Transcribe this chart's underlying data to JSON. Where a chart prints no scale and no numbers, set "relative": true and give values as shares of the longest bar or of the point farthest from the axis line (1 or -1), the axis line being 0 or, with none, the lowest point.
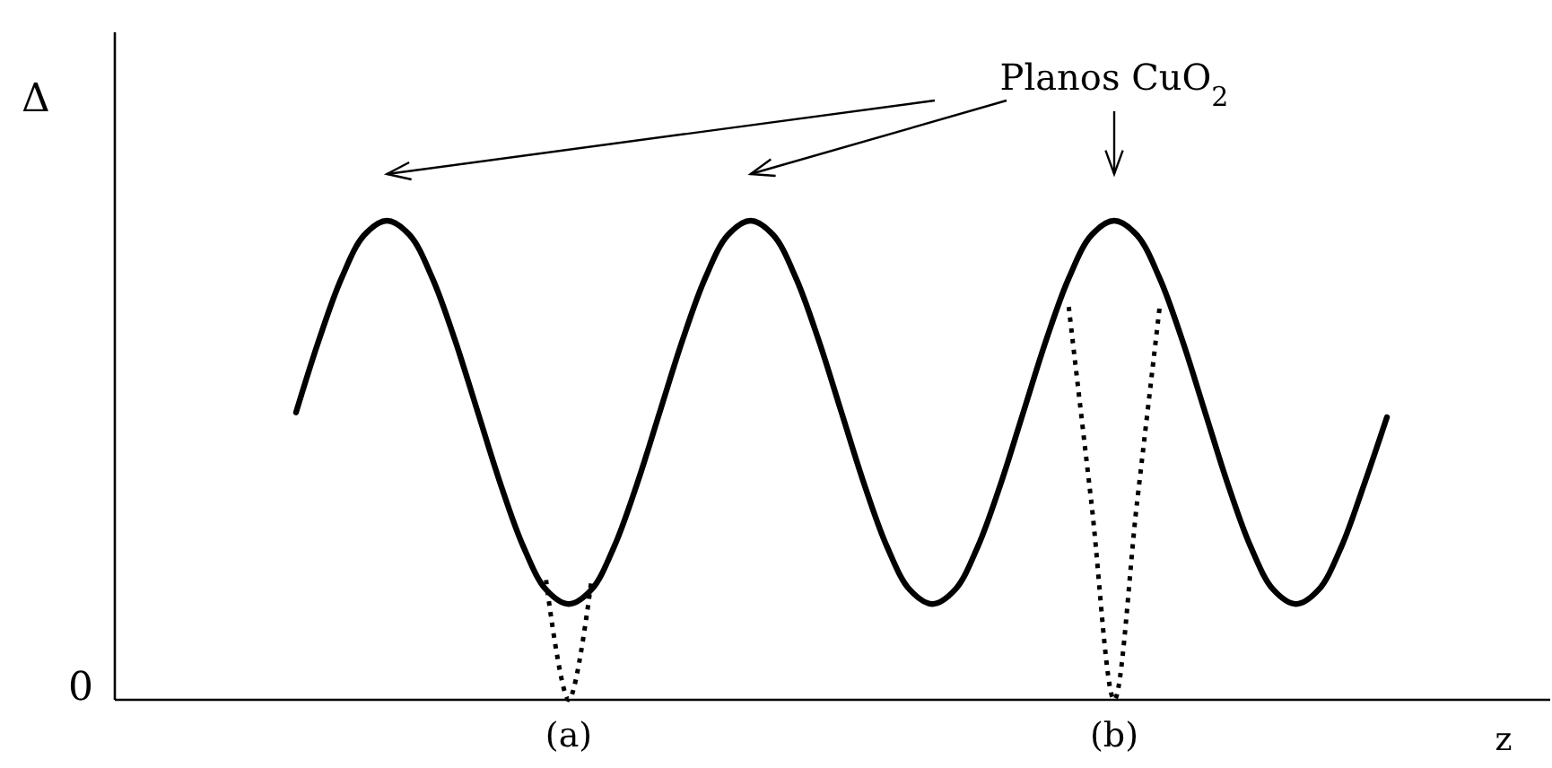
{
  "chart_data": {
    "type": "line",
    "relative": true,
    "xlabel": "z",
    "line_style": "solid",
    "marker": "none",
    "categories": [
      null,
      null,
      null,
      null,
      null,
      null,
      null,
      null,
      null,
      null,
      null,
      null,
      null,
      null,
      null,
      null,
      null,
      null,
      null,
      null,
      null,
      null,
      null,
      null,
      null,
      null,
      null,
      null,
      null,
      null,
      null,
      null,
      null,
      null,
      null,
      null,
      null,
      null,
      null,
      null,
      null,
      null,
      null,
      null,
      null,
      null,
      null,
      null,
      null
    ],
    "series": [
      {
        "color": "#000000",
        "values": [
          0.6,
          0.75,
          0.88,
          0.97,
          1,
          0.97,
          0.88,
          0.75,
          0.6,
          0.45,
          0.32,
          0.23,
          0.2,
          0.23,
          0.32,
          0.45,
          0.6,
          0.75,
          0.88,
          0.97,
          1,
          0.97,
          0.88,
          0.75,
          0.6,
          0.45,
          0.32,
          0.23,
          0.2,
          0.23,
          0.32,
          0.45,
          0.6,
          0.75,
          0.88,
          0.97,
          1,
          0.97,
          0.88,
          0.75,
          0.6,
          0.45,
          0.32,
          0.23,
          0.2,
          0.23,
          0.32,
          0.45,
          0.59
        ]
      },
      {
        "color": "#000000",
        "line_style": "dotted",
        "values": [
          null,
          null,
          null,
          null,
          null,
          null,
          null,
          null,
          null,
          null,
          null,
          0.25,
          0,
          0.25,
          null,
          null,
          null,
          null,
          null,
          null,
          null,
          null,
          null,
          null,
          null,
          null,
          null,
          null,
          null,
          null,
          null,
          null,
          null,
          null,
          null,
          null,
          null,
          null,
          null,
          null,
          null,
          null,
          null,
          null,
          null,
          null,
          null,
          null,
          null
        ]
      },
      {
        "color": "#000000",
        "line_style": "dotted",
        "values": [
          null,
          null,
          null,
          null,
          null,
          null,
          null,
          null,
          null,
          null,
          null,
          null,
          null,
          null,
          null,
          null,
          null,
          null,
          null,
          null,
          null,
          null,
          null,
          null,
          null,
          null,
          null,
          null,
          null,
          null,
          null,
          null,
          null,
          null,
          0.82,
          0.41,
          0,
          0.41,
          0.82,
          null,
          null,
          null,
          null,
          null,
          null,
          null,
          null,
          null,
          null
        ]
      }
    ],
    "annotations": [
      "Planos CuO$_{2}$",
      "0",
      "Δ",
      "(a)",
      "(b)"
    ]
  }
}
